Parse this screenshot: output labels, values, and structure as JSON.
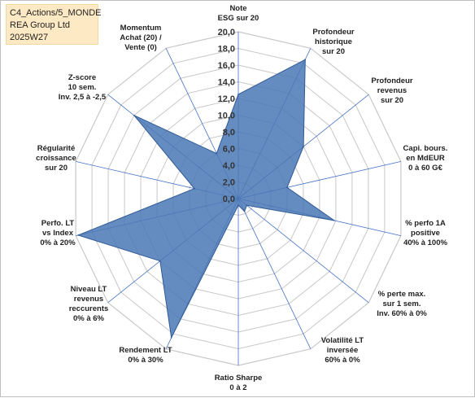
{
  "header": {
    "line1": "C4_Actions/5_MONDE",
    "line2": "REA Group Ltd",
    "line3": "2025W27"
  },
  "colors": {
    "fill": "#4a78b5",
    "stroke": "#2f5a96",
    "grid": "#c8c8c8",
    "spoke": "#4472c4"
  },
  "chart_data": {
    "type": "radar",
    "rmax": 20,
    "ticks": [
      "0,0",
      "2,0",
      "4,0",
      "6,0",
      "8,0",
      "10,0",
      "12,0",
      "14,0",
      "16,0",
      "18,0",
      "20,0"
    ],
    "axes": [
      {
        "label": [
          "Note",
          "ESG sur 20"
        ]
      },
      {
        "label": [
          "Profondeur",
          "historique",
          "sur 20"
        ]
      },
      {
        "label": [
          "Profondeur",
          "revenus",
          "sur 20"
        ]
      },
      {
        "label": [
          "Capi. bours.",
          "en MdEUR",
          "0 à 60 G€"
        ]
      },
      {
        "label": [
          "% perfo 1A",
          "positive",
          "40% à 100%"
        ]
      },
      {
        "label": [
          "% perte max.",
          "sur 1 sem.",
          "Inv. 60% à 0%"
        ]
      },
      {
        "label": [
          "Volatilité LT",
          "inversée",
          "60% à 0%"
        ]
      },
      {
        "label": [
          "Ratio Sharpe",
          "0 à 2"
        ]
      },
      {
        "label": [
          "Rendement LT",
          "0% à 30%"
        ]
      },
      {
        "label": [
          "Niveau LT",
          "revenus",
          "reccurents",
          "0% à 6%"
        ]
      },
      {
        "label": [
          "Perfo. LT",
          "vs Index",
          "0% à 20%"
        ]
      },
      {
        "label": [
          "Régularité",
          "croissance",
          "sur 20"
        ]
      },
      {
        "label": [
          "Z-score",
          "10 sem.",
          "Inv. 2,5 à -2,5"
        ]
      },
      {
        "label": [
          "Momentum",
          "Achat (20) /",
          "Vente (0)"
        ]
      }
    ],
    "values": [
      12.5,
      18.5,
      10.0,
      6.0,
      11.8,
      1.3,
      1.7,
      0.8,
      18.5,
      12.0,
      19.7,
      5.4,
      16.0,
      6.0
    ]
  }
}
